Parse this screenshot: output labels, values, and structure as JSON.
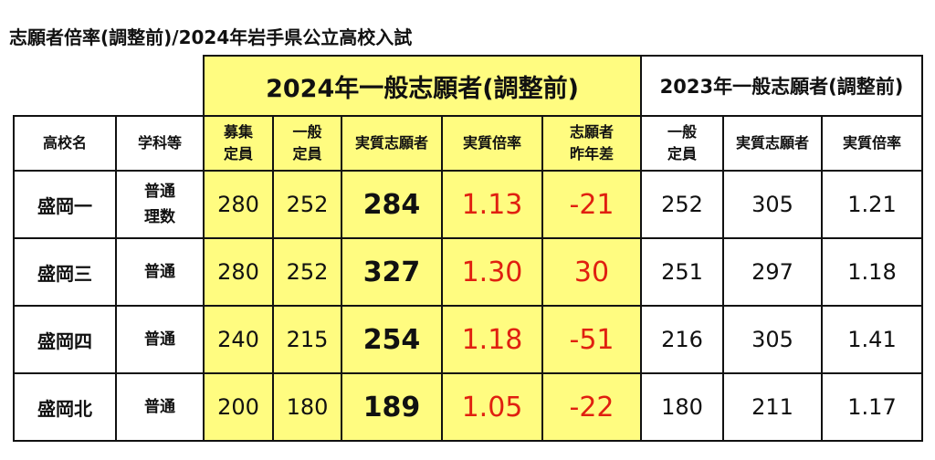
{
  "title": "志願者倍率(調整前)/2024年岩手県公立高校入試",
  "header": {
    "group_2024": "2024年一般志願者(調整前)",
    "group_2023": "2023年一般志願者(調整前)"
  },
  "columns": {
    "school": "高校名",
    "dept": "学科等",
    "recruit_l1": "募集",
    "recruit_l2": "定員",
    "general_l1": "一般",
    "general_l2": "定員",
    "applicants": "実質志願者",
    "ratio": "実質倍率",
    "diff_l1": "志願者",
    "diff_l2": "昨年差",
    "general23_l1": "一般",
    "general23_l2": "定員",
    "applicants23": "実質志願者",
    "ratio23": "実質倍率"
  },
  "rows": [
    {
      "school": "盛岡一",
      "dept_l1": "普通",
      "dept_l2": "理数",
      "recruit": "280",
      "general": "252",
      "applicants": "284",
      "ratio": "1.13",
      "diff": "-21",
      "general23": "252",
      "applicants23": "305",
      "ratio23": "1.21"
    },
    {
      "school": "盛岡三",
      "dept_l1": "普通",
      "dept_l2": "",
      "recruit": "280",
      "general": "252",
      "applicants": "327",
      "ratio": "1.30",
      "diff": "30",
      "general23": "251",
      "applicants23": "297",
      "ratio23": "1.18"
    },
    {
      "school": "盛岡四",
      "dept_l1": "普通",
      "dept_l2": "",
      "recruit": "240",
      "general": "215",
      "applicants": "254",
      "ratio": "1.18",
      "diff": "-51",
      "general23": "216",
      "applicants23": "305",
      "ratio23": "1.41"
    },
    {
      "school": "盛岡北",
      "dept_l1": "普通",
      "dept_l2": "",
      "recruit": "200",
      "general": "180",
      "applicants": "189",
      "ratio": "1.05",
      "diff": "-22",
      "general23": "180",
      "applicants23": "211",
      "ratio23": "1.17"
    }
  ],
  "colors": {
    "highlight": "#fffc80",
    "accent_red": "#e02010"
  }
}
